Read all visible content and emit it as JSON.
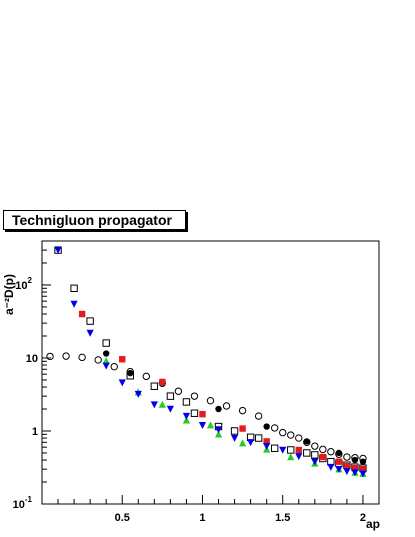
{
  "chart_data": {
    "type": "scatter",
    "title": "Technigluon propagator",
    "xlabel": "ap",
    "ylabel": "a⁻²D(p)",
    "xlim": [
      0,
      2.1
    ],
    "ylim": [
      0.1,
      400
    ],
    "yscale": "log",
    "grid": false,
    "x_ticks": [
      {
        "value": 0.5,
        "label": "0.5"
      },
      {
        "value": 1,
        "label": "1"
      },
      {
        "value": 1.5,
        "label": "1.5"
      },
      {
        "value": 2,
        "label": "2"
      }
    ],
    "y_ticks": [
      {
        "value": 0.1,
        "base": "10",
        "exp": "-1"
      },
      {
        "value": 1,
        "base": "1",
        "exp": ""
      },
      {
        "value": 10,
        "base": "10",
        "exp": ""
      },
      {
        "value": 100,
        "base": "10",
        "exp": "2"
      }
    ],
    "series": [
      {
        "marker": "open-circle",
        "color": "#000000",
        "points": [
          [
            0.05,
            10.5
          ],
          [
            0.15,
            10.6
          ],
          [
            0.25,
            10.2
          ],
          [
            0.35,
            9.4
          ],
          [
            0.45,
            7.6
          ],
          [
            0.55,
            6.5
          ],
          [
            0.65,
            5.6
          ],
          [
            0.75,
            4.5
          ],
          [
            0.85,
            3.5
          ],
          [
            0.95,
            3.0
          ],
          [
            1.05,
            2.6
          ],
          [
            1.15,
            2.2
          ],
          [
            1.25,
            1.9
          ],
          [
            1.35,
            1.6
          ],
          [
            1.45,
            1.1
          ],
          [
            1.5,
            0.95
          ],
          [
            1.55,
            0.88
          ],
          [
            1.6,
            0.8
          ],
          [
            1.65,
            0.7
          ],
          [
            1.7,
            0.62
          ],
          [
            1.75,
            0.56
          ],
          [
            1.8,
            0.52
          ],
          [
            1.85,
            0.48
          ],
          [
            1.9,
            0.44
          ],
          [
            1.95,
            0.43
          ],
          [
            2.0,
            0.42
          ]
        ]
      },
      {
        "marker": "open-square",
        "color": "#000000",
        "points": [
          [
            0.1,
            300
          ],
          [
            0.2,
            90
          ],
          [
            0.3,
            32
          ],
          [
            0.4,
            16
          ],
          [
            0.55,
            5.7
          ],
          [
            0.7,
            4.1
          ],
          [
            0.8,
            3.0
          ],
          [
            0.9,
            2.5
          ],
          [
            0.95,
            1.75
          ],
          [
            1.1,
            1.15
          ],
          [
            1.2,
            1.0
          ],
          [
            1.3,
            0.82
          ],
          [
            1.35,
            0.8
          ],
          [
            1.45,
            0.58
          ],
          [
            1.55,
            0.55
          ],
          [
            1.65,
            0.5
          ],
          [
            1.7,
            0.47
          ],
          [
            1.75,
            0.42
          ],
          [
            1.8,
            0.38
          ],
          [
            1.85,
            0.36
          ],
          [
            1.9,
            0.34
          ],
          [
            1.95,
            0.32
          ],
          [
            2.0,
            0.31
          ]
        ]
      },
      {
        "marker": "filled-circle",
        "color": "#000000",
        "points": [
          [
            0.4,
            11.5
          ],
          [
            0.55,
            6.2
          ],
          [
            0.75,
            4.6
          ],
          [
            1.1,
            2.0
          ],
          [
            1.4,
            1.15
          ],
          [
            1.65,
            0.72
          ],
          [
            1.85,
            0.5
          ],
          [
            1.95,
            0.4
          ],
          [
            2.0,
            0.38
          ]
        ]
      },
      {
        "marker": "filled-square",
        "color": "#e41a1c",
        "points": [
          [
            0.25,
            40
          ],
          [
            0.5,
            9.6
          ],
          [
            0.75,
            4.7
          ],
          [
            1.0,
            1.7
          ],
          [
            1.25,
            1.08
          ],
          [
            1.4,
            0.72
          ],
          [
            1.6,
            0.55
          ],
          [
            1.75,
            0.44
          ],
          [
            1.85,
            0.38
          ],
          [
            1.9,
            0.33
          ],
          [
            1.95,
            0.31
          ],
          [
            2.0,
            0.3
          ]
        ]
      },
      {
        "marker": "filled-triangle-up",
        "color": "#22cc22",
        "points": [
          [
            0.4,
            9.1
          ],
          [
            0.6,
            3.4
          ],
          [
            0.75,
            2.3
          ],
          [
            0.9,
            1.4
          ],
          [
            1.05,
            1.2
          ],
          [
            1.1,
            0.9
          ],
          [
            1.25,
            0.68
          ],
          [
            1.4,
            0.56
          ],
          [
            1.55,
            0.44
          ],
          [
            1.7,
            0.36
          ],
          [
            1.85,
            0.3
          ],
          [
            1.95,
            0.27
          ],
          [
            2.0,
            0.26
          ]
        ]
      },
      {
        "marker": "filled-triangle-down",
        "color": "#0000ee",
        "points": [
          [
            0.1,
            300
          ],
          [
            0.2,
            55
          ],
          [
            0.3,
            22
          ],
          [
            0.4,
            7.8
          ],
          [
            0.5,
            4.6
          ],
          [
            0.6,
            3.2
          ],
          [
            0.7,
            2.3
          ],
          [
            0.8,
            2.0
          ],
          [
            0.9,
            1.6
          ],
          [
            1.0,
            1.2
          ],
          [
            1.1,
            1.05
          ],
          [
            1.2,
            0.8
          ],
          [
            1.3,
            0.7
          ],
          [
            1.4,
            0.62
          ],
          [
            1.5,
            0.55
          ],
          [
            1.6,
            0.45
          ],
          [
            1.7,
            0.38
          ],
          [
            1.8,
            0.32
          ],
          [
            1.85,
            0.3
          ],
          [
            1.9,
            0.28
          ],
          [
            1.95,
            0.27
          ],
          [
            2.0,
            0.26
          ]
        ]
      }
    ]
  }
}
